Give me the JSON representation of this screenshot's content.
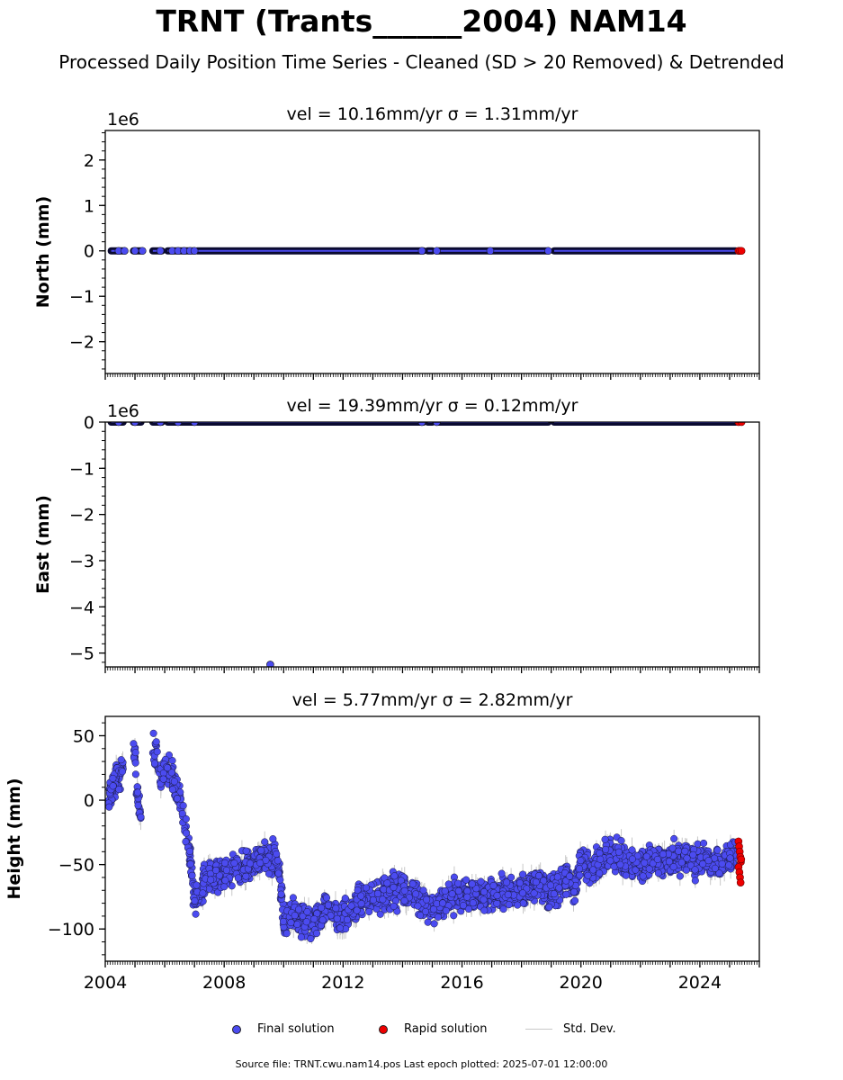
{
  "header": {
    "title": "TRNT (Trants______2004) NAM14",
    "subtitle": "Processed Daily Position Time Series - Cleaned (SD > 20 Removed) & Detrended"
  },
  "legend": {
    "final_label": "Final solution",
    "rapid_label": "Rapid solution",
    "std_label": "Std. Dev."
  },
  "footer": {
    "text": "Source file: TRNT.cwu.nam14.pos  Last epoch plotted: 2025-07-01 12:00:00"
  },
  "colors": {
    "final": "#4b4bf0",
    "rapid": "#ee0000",
    "std": "#c8c8c8"
  },
  "chart_data": [
    {
      "type": "scatter",
      "title": "vel = 10.16mm/yr   σ = 1.31mm/yr",
      "ylabel": "North (mm)",
      "offset_label": "1e6",
      "xlim": [
        2004.0,
        2026.0
      ],
      "ylim": [
        -2.7,
        2.65
      ],
      "yticks": [
        2,
        1,
        0,
        -1,
        -2
      ],
      "ytick_labels": [
        "2",
        "1",
        "0",
        "−1",
        "−2"
      ],
      "minor_y_step": 0.2,
      "x_ticks_labeled": false,
      "series": [
        {
          "kind": "final",
          "segments": [
            [
              2004.2,
              2004.6
            ],
            [
              2004.95,
              2005.2
            ],
            [
              2005.6,
              2005.9
            ],
            [
              2006.1,
              2007.0
            ],
            [
              2007.1,
              2014.7
            ],
            [
              2014.85,
              2015.0
            ],
            [
              2015.2,
              2018.9
            ],
            [
              2019.1,
              2025.2
            ]
          ],
          "x": [
            2004.45,
            2004.65,
            2005.0,
            2005.25,
            2005.85,
            2006.25,
            2006.45,
            2006.65,
            2006.85,
            2007.0,
            2014.65,
            2015.15,
            2016.95,
            2018.9
          ],
          "y": [
            0,
            0,
            0,
            0,
            0,
            0,
            0,
            0,
            0,
            0,
            0,
            0,
            0,
            0
          ]
        },
        {
          "kind": "rapid",
          "x": [
            2025.3,
            2025.35,
            2025.4
          ],
          "y": [
            0,
            0,
            0
          ]
        }
      ]
    },
    {
      "type": "scatter",
      "title": "vel = 19.39mm/yr   σ = 0.12mm/yr",
      "ylabel": "East (mm)",
      "offset_label": "1e6",
      "xlim": [
        2004.0,
        2026.0
      ],
      "ylim": [
        -5.3,
        0.0
      ],
      "yticks": [
        0,
        -1,
        -2,
        -3,
        -4,
        -5
      ],
      "ytick_labels": [
        "0",
        "−1",
        "−2",
        "−3",
        "−4",
        "−5"
      ],
      "minor_y_step": 0.2,
      "x_ticks_labeled": false,
      "series": [
        {
          "kind": "final",
          "segments": [
            [
              2004.2,
              2004.6
            ],
            [
              2004.95,
              2005.2
            ],
            [
              2005.6,
              2005.9
            ],
            [
              2006.1,
              2007.0
            ],
            [
              2007.1,
              2014.7
            ],
            [
              2014.85,
              2015.0
            ],
            [
              2015.2,
              2018.9
            ],
            [
              2019.1,
              2025.2
            ]
          ],
          "x": [
            2004.45,
            2005.0,
            2005.85,
            2006.45,
            2007.0,
            2014.65,
            2015.15,
            2009.55
          ],
          "y": [
            0,
            0,
            0,
            0,
            0,
            0,
            0,
            -5.25
          ]
        },
        {
          "kind": "rapid",
          "x": [
            2025.3,
            2025.4
          ],
          "y": [
            0,
            0
          ]
        }
      ]
    },
    {
      "type": "scatter",
      "title": "vel = 5.77mm/yr   σ = 2.82mm/yr",
      "ylabel": "Height (mm)",
      "offset_label": "",
      "xlim": [
        2004.0,
        2026.0
      ],
      "ylim": [
        -125,
        65
      ],
      "yticks": [
        50,
        0,
        -50,
        -100
      ],
      "ytick_labels": [
        "50",
        "0",
        "−50",
        "−100"
      ],
      "minor_y_step": 10,
      "x_ticks_labeled": true,
      "xticks": [
        2004,
        2008,
        2012,
        2016,
        2020,
        2024
      ],
      "xtick_labels": [
        "2004",
        "2008",
        "2012",
        "2016",
        "2020",
        "2024"
      ],
      "series": [
        {
          "kind": "final",
          "trend": {
            "x": [
              2004.1,
              2004.3,
              2004.5,
              2004.7,
              2004.8,
              2004.9,
              2005.0,
              2005.05,
              2005.2,
              2005.6,
              2005.75,
              2005.9,
              2006.0,
              2006.1,
              2006.3,
              2006.5,
              2006.7,
              2006.9,
              2007.0,
              2007.2,
              2007.5,
              2008.0,
              2008.5,
              2009.0,
              2009.3,
              2009.5,
              2009.7,
              2009.85,
              2010.0,
              2010.3,
              2011.0,
              2011.5,
              2012.0,
              2012.5,
              2013.0,
              2013.5,
              2014.0,
              2014.5,
              2014.8,
              2015.0,
              2015.5,
              2016.0,
              2016.5,
              2017.0,
              2017.5,
              2018.0,
              2018.5,
              2019.0,
              2019.5,
              2019.8,
              2020.0,
              2020.3,
              2020.7,
              2021.0,
              2021.5,
              2022.0,
              2022.5,
              2023.0,
              2023.5,
              2024.0,
              2024.5,
              2025.0,
              2025.2
            ],
            "y": [
              5,
              15,
              22,
              28,
              5,
              30,
              38,
              10,
              -15,
              40,
              35,
              15,
              25,
              25,
              15,
              0,
              -25,
              -50,
              -80,
              -70,
              -60,
              -58,
              -52,
              -48,
              -45,
              -50,
              -40,
              -55,
              -95,
              -90,
              -95,
              -85,
              -92,
              -80,
              -75,
              -72,
              -70,
              -75,
              -80,
              -85,
              -75,
              -75,
              -74,
              -72,
              -72,
              -70,
              -65,
              -72,
              -60,
              -70,
              -45,
              -55,
              -45,
              -40,
              -50,
              -52,
              -45,
              -48,
              -45,
              -45,
              -48,
              -46,
              -45
            ]
          },
          "spread": 10,
          "count": 2600,
          "gaps": [
            [
              2004.6,
              2004.95
            ],
            [
              2005.2,
              2005.6
            ]
          ]
        },
        {
          "kind": "rapid",
          "x": [
            2025.3,
            2025.32,
            2025.34,
            2025.36,
            2025.38,
            2025.3,
            2025.33,
            2025.35,
            2025.37,
            2025.39
          ],
          "y": [
            -32,
            -36,
            -40,
            -44,
            -48,
            -52,
            -56,
            -60,
            -64,
            -46
          ]
        }
      ]
    }
  ]
}
